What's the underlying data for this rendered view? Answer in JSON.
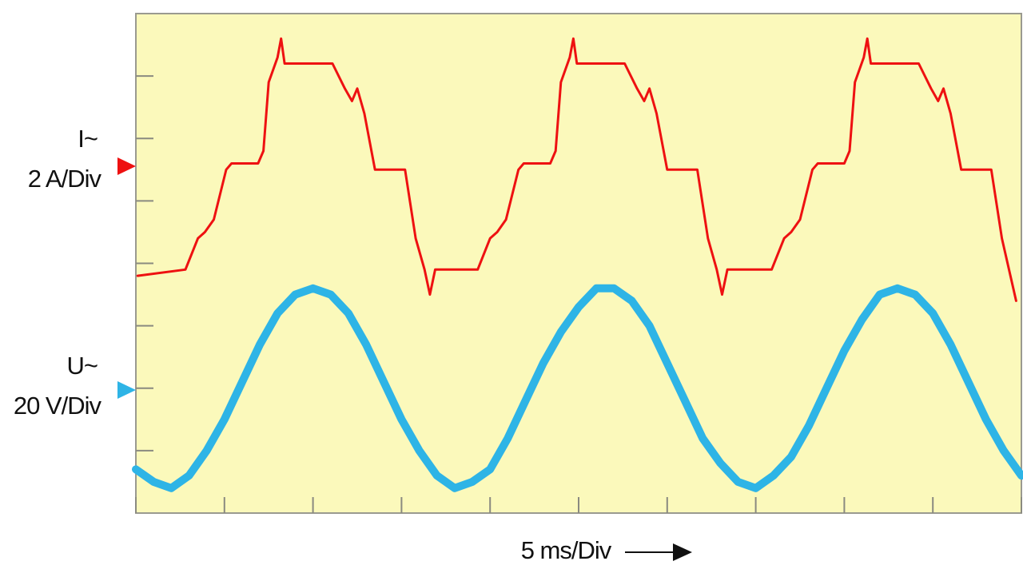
{
  "chart_data": {
    "type": "line",
    "xlabel": "5 ms/Div",
    "xlim": [
      0,
      50
    ],
    "xticks": [
      0,
      5,
      10,
      15,
      20,
      25,
      30,
      35,
      40,
      45,
      50
    ],
    "ylim": [
      0,
      8
    ],
    "yticks": [
      1,
      2,
      3,
      4,
      5,
      6,
      7
    ],
    "series": [
      {
        "name": "I~",
        "scale": "2 A/Div",
        "color": "#ee1111",
        "width": 3,
        "x": [
          0.1,
          2.8,
          3.5,
          3.9,
          4.4,
          5.1,
          5.4,
          6.9,
          7.2,
          7.5,
          8.0,
          8.2,
          8.4,
          11.1,
          11.8,
          12.2,
          12.5,
          12.9,
          13.5,
          15.2,
          15.8,
          16.3,
          16.6,
          16.9,
          19.3,
          20.0,
          20.4,
          20.9,
          21.6,
          21.9,
          23.4,
          23.7,
          24.0,
          24.5,
          24.7,
          24.9,
          27.6,
          28.3,
          28.7,
          29.0,
          29.4,
          30.0,
          31.7,
          32.3,
          32.8,
          33.1,
          33.4,
          35.9,
          36.6,
          37.0,
          37.5,
          38.2,
          38.5,
          40.0,
          40.3,
          40.6,
          41.1,
          41.3,
          41.5,
          44.2,
          44.9,
          45.3,
          45.6,
          46.0,
          46.6,
          48.3,
          48.9,
          49.7
        ],
        "values": [
          3.8,
          3.9,
          4.4,
          4.5,
          4.7,
          5.5,
          5.6,
          5.6,
          5.8,
          6.9,
          7.3,
          7.6,
          7.2,
          7.2,
          6.8,
          6.6,
          6.8,
          6.4,
          5.5,
          5.5,
          4.4,
          3.9,
          3.5,
          3.9,
          3.9,
          4.4,
          4.5,
          4.7,
          5.5,
          5.6,
          5.6,
          5.8,
          6.9,
          7.3,
          7.6,
          7.2,
          7.2,
          6.8,
          6.6,
          6.8,
          6.4,
          5.5,
          5.5,
          4.4,
          3.9,
          3.5,
          3.9,
          3.9,
          4.4,
          4.5,
          4.7,
          5.5,
          5.6,
          5.6,
          5.8,
          6.9,
          7.3,
          7.6,
          7.2,
          7.2,
          6.8,
          6.6,
          6.8,
          6.4,
          5.5,
          5.5,
          4.4,
          3.4
        ]
      },
      {
        "name": "U~",
        "scale": "20 V/Div",
        "color": "#2eb4e6",
        "width": 10,
        "x": [
          0,
          1,
          2,
          3,
          4,
          5,
          6,
          7,
          8,
          9,
          10,
          11,
          12,
          13,
          14,
          15,
          16,
          17,
          18,
          19,
          20,
          21,
          22,
          23,
          24,
          25,
          26,
          27,
          28,
          29,
          30,
          31,
          32,
          33,
          34,
          35,
          36,
          37,
          38,
          39,
          40,
          41,
          42,
          43,
          44,
          45,
          46,
          47,
          48,
          49,
          50
        ],
        "values": [
          0.7,
          0.5,
          0.4,
          0.6,
          1.0,
          1.5,
          2.1,
          2.7,
          3.2,
          3.5,
          3.6,
          3.5,
          3.2,
          2.7,
          2.1,
          1.5,
          1.0,
          0.6,
          0.4,
          0.5,
          0.7,
          1.2,
          1.8,
          2.4,
          2.9,
          3.3,
          3.6,
          3.6,
          3.4,
          3.0,
          2.4,
          1.8,
          1.2,
          0.8,
          0.5,
          0.4,
          0.6,
          0.9,
          1.4,
          2.0,
          2.6,
          3.1,
          3.5,
          3.6,
          3.5,
          3.2,
          2.7,
          2.1,
          1.5,
          1.0,
          0.6
        ]
      }
    ]
  }
}
